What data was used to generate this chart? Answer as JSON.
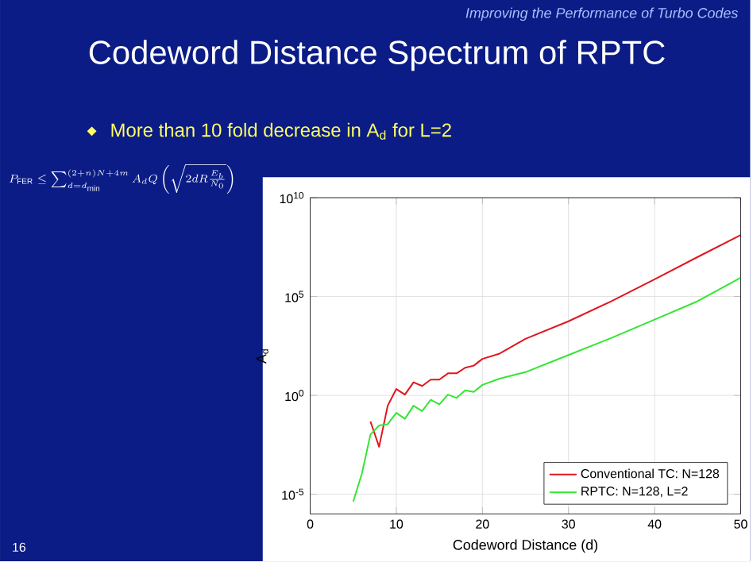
{
  "chart_data": {
    "type": "line",
    "title": "Codeword Distance Spectrum of RPTC",
    "subtitle": "More than 10 fold decrease in A$_{d}$ for L=2",
    "annotations": [
      "Improving the Performance of Turbo Codes",
      "16",
      "P_{\\mathrm{FER}} \\le \\sum_{d=d_{\\min}}^{(2+n)N+4m} A_d Q\\left(\\sqrt{2dR\\frac{E_b}{N_0}}\\right)"
    ],
    "xlabel": "Codeword Distance (d)",
    "ylabel": "A$_{d}$",
    "log": true,
    "grid": true,
    "legend": "bottom right",
    "xlim": [
      0,
      50
    ],
    "xticks": [
      0,
      10,
      20,
      30,
      40,
      50
    ],
    "ylim": [
      1e-06,
      10000000000.0
    ],
    "yticks": [
      {
        "value": 1e-05,
        "label": "10$^{-5}$"
      },
      {
        "value": 1,
        "label": "10$^{0}$"
      },
      {
        "value": 100000.0,
        "label": "10$^{5}$"
      },
      {
        "value": 10000000000.0,
        "label": "10$^{10}$"
      }
    ],
    "series": [
      {
        "name": "Conventional TC: N=128",
        "color": "#e0161e",
        "x": [
          7,
          8,
          9,
          10,
          11,
          12,
          13,
          14,
          15,
          16,
          17,
          18,
          19,
          20,
          22,
          25,
          30,
          35,
          40,
          45,
          50
        ],
        "values": [
          0.048,
          0.0025,
          0.3,
          2.1,
          1.1,
          4.6,
          3,
          6.3,
          6.3,
          13,
          13,
          25,
          32,
          70,
          130,
          720,
          5600,
          58000,
          740000,
          10000000,
          130000000
        ]
      },
      {
        "name": "RPTC: N=128, L=2",
        "color": "#33e633",
        "x": [
          5,
          6,
          7,
          8,
          9,
          10,
          11,
          12,
          13,
          14,
          15,
          16,
          17,
          18,
          19,
          20,
          22,
          25,
          30,
          35,
          40,
          45,
          50
        ],
        "values": [
          4.3e-06,
          0.00011,
          0.0105,
          0.03,
          0.035,
          0.13,
          0.065,
          0.3,
          0.16,
          0.6,
          0.35,
          1.1,
          0.74,
          1.8,
          1.5,
          3.4,
          7,
          15,
          110,
          810,
          6800,
          58000,
          890000
        ]
      }
    ]
  }
}
